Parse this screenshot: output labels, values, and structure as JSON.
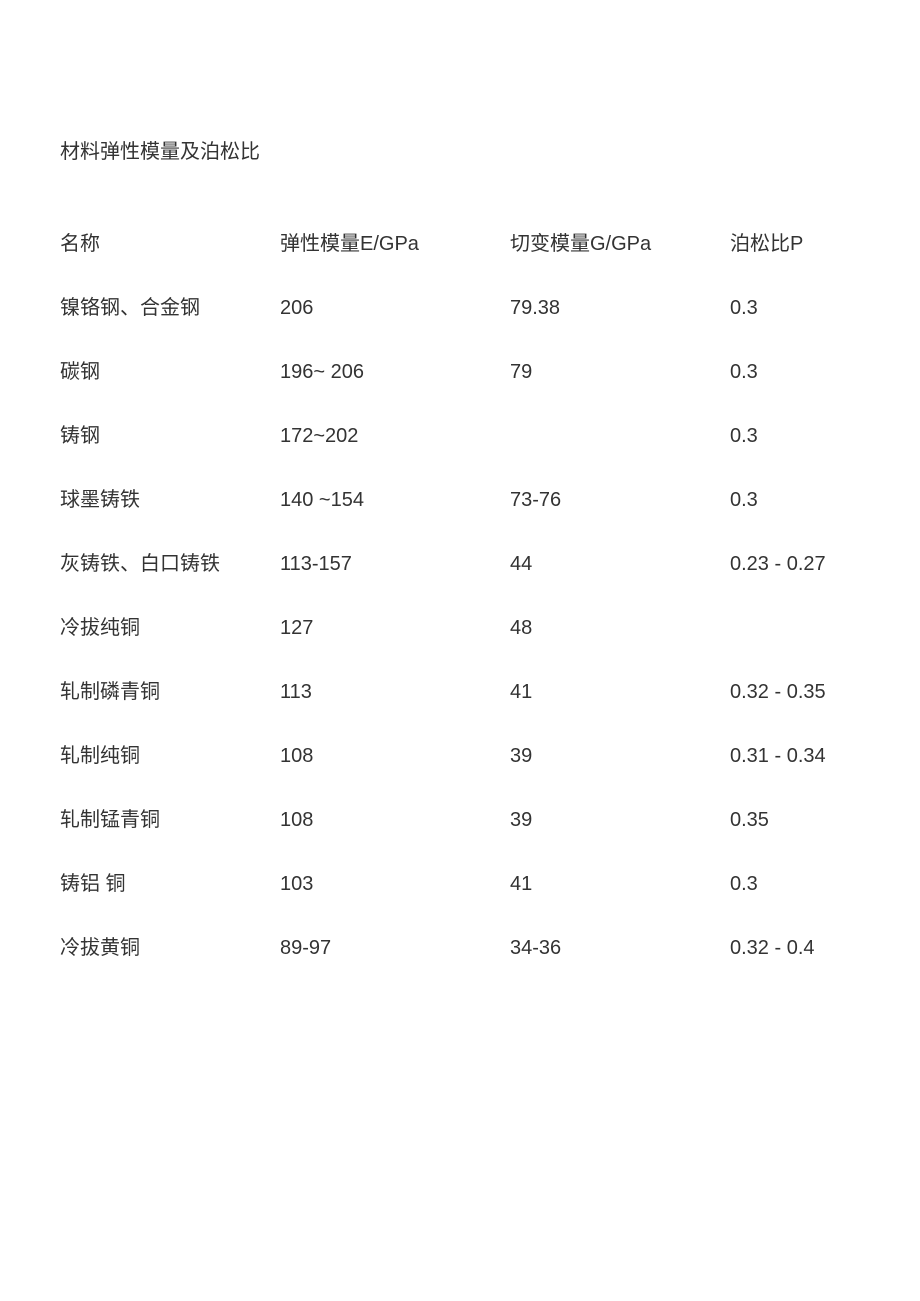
{
  "title": "材料弹性模量及泊松比",
  "table": {
    "columns": [
      "名称",
      "弹性模量E/GPa",
      "切变模量G/GPa",
      "泊松比P"
    ],
    "rows": [
      [
        "镍铬钢、合金钢",
        "206",
        "79.38",
        "0.3"
      ],
      [
        "碳钢",
        "196~ 206",
        "79",
        "0.3"
      ],
      [
        "铸钢",
        "172~202",
        "",
        "0.3"
      ],
      [
        "球墨铸铁",
        "140 ~154",
        "73-76",
        "0.3"
      ],
      [
        "灰铸铁、白口铸铁",
        "113-157",
        "44",
        "0.23 - 0.27"
      ],
      [
        "冷拔纯铜",
        "127",
        "48",
        ""
      ],
      [
        "轧制磷青铜",
        "113",
        "41",
        "0.32 - 0.35"
      ],
      [
        "轧制纯铜",
        "108",
        "39",
        "0.31 - 0.34"
      ],
      [
        "轧制锰青铜",
        "108",
        "39",
        "0.35"
      ],
      [
        "铸铝 铜",
        "103",
        "41",
        "0.3"
      ],
      [
        "冷拔黄铜",
        "89-97",
        "34-36",
        "0.32 - 0.4"
      ]
    ],
    "column_widths": [
      "220px",
      "230px",
      "220px",
      "130px"
    ],
    "font_size": 20,
    "text_color": "#333333",
    "background_color": "#ffffff"
  }
}
